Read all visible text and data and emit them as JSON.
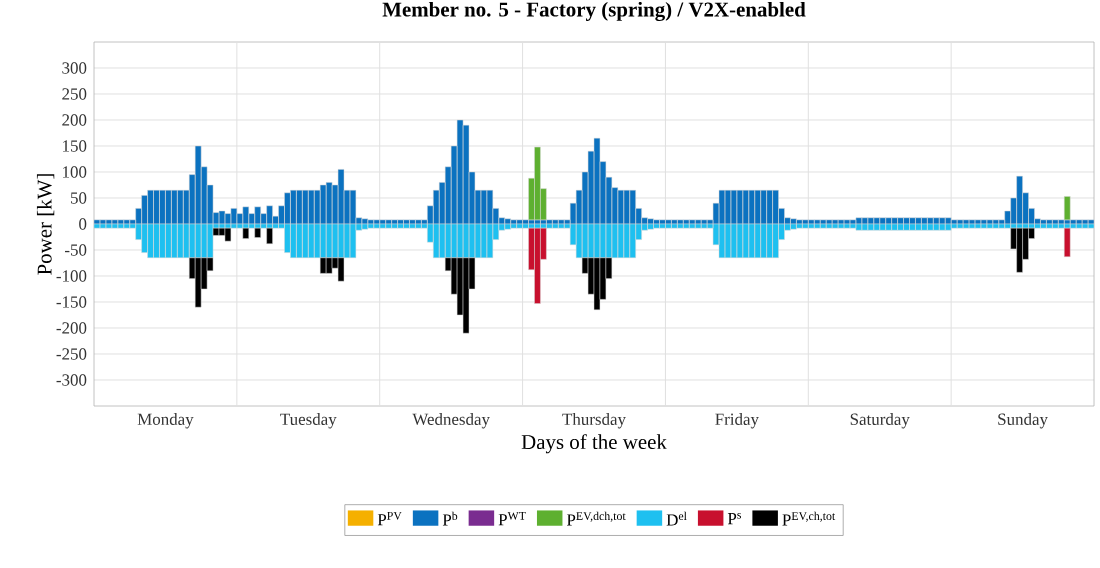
{
  "chart_data": {
    "type": "bar",
    "stacked": true,
    "title": "Member no. 5 - Factory (spring) / V2X-enabled",
    "xlabel": "Days of the week",
    "ylabel": "Power [kW]",
    "grid": true,
    "legend": "bottom",
    "ylim": [
      -350,
      350
    ],
    "yticks": [
      -300,
      -250,
      -200,
      -150,
      -100,
      -50,
      0,
      50,
      100,
      150,
      200,
      250,
      300
    ],
    "categories": [
      null,
      null,
      null,
      null,
      null,
      null,
      null,
      null,
      null,
      null,
      null,
      null,
      "Monday",
      null,
      null,
      null,
      null,
      null,
      null,
      null,
      null,
      null,
      null,
      null,
      null,
      null,
      null,
      null,
      null,
      null,
      null,
      null,
      null,
      null,
      null,
      null,
      "Tuesday",
      null,
      null,
      null,
      null,
      null,
      null,
      null,
      null,
      null,
      null,
      null,
      null,
      null,
      null,
      null,
      null,
      null,
      null,
      null,
      null,
      null,
      null,
      null,
      "Wednesday",
      null,
      null,
      null,
      null,
      null,
      null,
      null,
      null,
      null,
      null,
      null,
      null,
      null,
      null,
      null,
      null,
      null,
      null,
      null,
      null,
      null,
      null,
      null,
      "Thursday",
      null,
      null,
      null,
      null,
      null,
      null,
      null,
      null,
      null,
      null,
      null,
      null,
      null,
      null,
      null,
      null,
      null,
      null,
      null,
      null,
      null,
      null,
      null,
      "Friday",
      null,
      null,
      null,
      null,
      null,
      null,
      null,
      null,
      null,
      null,
      null,
      null,
      null,
      null,
      null,
      null,
      null,
      null,
      null,
      null,
      null,
      null,
      null,
      "Saturday",
      null,
      null,
      null,
      null,
      null,
      null,
      null,
      null,
      null,
      null,
      null,
      null,
      null,
      null,
      null,
      null,
      null,
      null,
      null,
      null,
      null,
      null,
      null,
      "Sunday",
      null,
      null,
      null,
      null,
      null,
      null,
      null,
      null,
      null,
      null,
      null
    ],
    "series": [
      {
        "name": "P$^{PV}$",
        "color": "#f5b000",
        "values": [
          null,
          null,
          null,
          null,
          null,
          null,
          null,
          null,
          null,
          null,
          null,
          null,
          null,
          null,
          null,
          null,
          null,
          null,
          null,
          null,
          null,
          null,
          null,
          null,
          null,
          null,
          null,
          null,
          null,
          null,
          null,
          null,
          null,
          null,
          null,
          null,
          null,
          null,
          null,
          null,
          null,
          null,
          null,
          null,
          null,
          null,
          null,
          null,
          null,
          null,
          null,
          null,
          null,
          null,
          null,
          null,
          null,
          null,
          null,
          null,
          null,
          null,
          null,
          null,
          null,
          null,
          null,
          null,
          null,
          null,
          null,
          null,
          null,
          null,
          null,
          null,
          null,
          null,
          null,
          null,
          null,
          null,
          null,
          null,
          null,
          null,
          null,
          null,
          null,
          null,
          null,
          null,
          null,
          null,
          null,
          null,
          null,
          null,
          null,
          null,
          null,
          null,
          null,
          null,
          null,
          null,
          null,
          null,
          null,
          null,
          null,
          null,
          null,
          null,
          null,
          null,
          null,
          null,
          null,
          null,
          null,
          null,
          null,
          null,
          null,
          null,
          null,
          null,
          null,
          null,
          null,
          null,
          null,
          null,
          null,
          null,
          null,
          null,
          null,
          null,
          null,
          null,
          null,
          null,
          null,
          null,
          null,
          null,
          null,
          null,
          null,
          null,
          null,
          null,
          null,
          null,
          null,
          null,
          null,
          null,
          null,
          null,
          null,
          null,
          null,
          null,
          null,
          null
        ]
      },
      {
        "name": "P$^{b}$",
        "color": "#0b72c0",
        "values": [
          8,
          8,
          8,
          8,
          8,
          8,
          8,
          30,
          55,
          65,
          65,
          65,
          65,
          65,
          65,
          65,
          95,
          150,
          110,
          75,
          22,
          25,
          20,
          30,
          20,
          33,
          20,
          33,
          20,
          35,
          15,
          35,
          60,
          65,
          65,
          65,
          65,
          65,
          75,
          80,
          75,
          105,
          65,
          65,
          12,
          10,
          8,
          8,
          8,
          8,
          8,
          8,
          8,
          8,
          8,
          8,
          35,
          65,
          80,
          110,
          150,
          200,
          190,
          100,
          65,
          65,
          65,
          30,
          12,
          10,
          8,
          8,
          8,
          8,
          8,
          8,
          8,
          8,
          8,
          8,
          40,
          65,
          100,
          140,
          165,
          120,
          90,
          70,
          65,
          65,
          65,
          30,
          12,
          10,
          8,
          8,
          8,
          8,
          8,
          8,
          8,
          8,
          8,
          8,
          40,
          65,
          65,
          65,
          65,
          65,
          65,
          65,
          65,
          65,
          65,
          30,
          12,
          10,
          8,
          8,
          8,
          8,
          8,
          8,
          8,
          8,
          8,
          8,
          12,
          12,
          12,
          12,
          12,
          12,
          12,
          12,
          12,
          12,
          12,
          12,
          12,
          12,
          12,
          12,
          8,
          8,
          8,
          8,
          8,
          8,
          8,
          8,
          8,
          25,
          50,
          92,
          60,
          30,
          10,
          8,
          8,
          8,
          8,
          8,
          8,
          8,
          8,
          8
        ]
      },
      {
        "name": "P$^{WT}$",
        "color": "#7a2c90",
        "values": [
          null,
          null,
          null,
          null,
          null,
          null,
          null,
          null,
          null,
          null,
          null,
          null,
          null,
          null,
          null,
          null,
          null,
          null,
          null,
          null,
          null,
          null,
          null,
          null,
          null,
          null,
          null,
          null,
          null,
          null,
          null,
          null,
          null,
          null,
          null,
          null,
          null,
          null,
          null,
          null,
          null,
          null,
          null,
          null,
          null,
          null,
          null,
          null,
          null,
          null,
          null,
          null,
          null,
          null,
          null,
          null,
          null,
          null,
          null,
          null,
          null,
          null,
          null,
          null,
          null,
          null,
          null,
          null,
          null,
          null,
          null,
          null,
          null,
          null,
          null,
          null,
          null,
          null,
          null,
          null,
          null,
          null,
          null,
          null,
          null,
          null,
          null,
          null,
          null,
          null,
          null,
          null,
          null,
          null,
          null,
          null,
          null,
          null,
          null,
          null,
          null,
          null,
          null,
          null,
          null,
          null,
          null,
          null,
          null,
          null,
          null,
          null,
          null,
          null,
          null,
          null,
          null,
          null,
          null,
          null,
          null,
          null,
          null,
          null,
          null,
          null,
          null,
          null,
          null,
          null,
          null,
          null,
          null,
          null,
          null,
          null,
          null,
          null,
          null,
          null,
          null,
          null,
          null,
          null,
          null,
          null,
          null,
          null,
          null,
          null,
          null,
          null,
          null,
          null,
          null,
          null,
          null,
          null,
          null,
          null,
          null,
          null,
          null,
          null,
          null,
          null,
          null,
          null
        ]
      },
      {
        "name": "P$^{EV,dch,tot}$",
        "color": "#5eb030",
        "values": [
          null,
          null,
          null,
          null,
          null,
          null,
          null,
          null,
          null,
          null,
          null,
          null,
          null,
          null,
          null,
          null,
          null,
          null,
          null,
          null,
          null,
          null,
          null,
          null,
          null,
          null,
          null,
          null,
          null,
          null,
          null,
          null,
          null,
          null,
          null,
          null,
          null,
          null,
          null,
          null,
          null,
          null,
          null,
          null,
          null,
          null,
          null,
          null,
          null,
          null,
          null,
          null,
          null,
          null,
          null,
          null,
          null,
          null,
          null,
          null,
          null,
          null,
          null,
          null,
          null,
          null,
          null,
          null,
          null,
          null,
          null,
          null,
          null,
          80,
          140,
          60,
          null,
          null,
          null,
          null,
          null,
          null,
          null,
          null,
          null,
          null,
          null,
          null,
          null,
          null,
          null,
          null,
          null,
          null,
          null,
          null,
          null,
          null,
          null,
          null,
          null,
          null,
          null,
          null,
          null,
          null,
          null,
          null,
          null,
          null,
          null,
          null,
          null,
          null,
          null,
          null,
          null,
          null,
          null,
          null,
          null,
          null,
          null,
          null,
          null,
          null,
          null,
          null,
          null,
          null,
          null,
          null,
          null,
          null,
          null,
          null,
          null,
          null,
          null,
          null,
          null,
          null,
          null,
          null,
          null,
          null,
          null,
          null,
          null,
          null,
          null,
          null,
          null,
          null,
          null,
          null,
          null,
          null,
          null,
          null,
          null,
          null,
          null,
          45,
          null,
          null,
          null,
          null
        ]
      },
      {
        "name": "D$^{el}$",
        "color": "#1ec0f0",
        "values": [
          -8,
          -8,
          -8,
          -8,
          -8,
          -8,
          -8,
          -30,
          -55,
          -65,
          -65,
          -65,
          -65,
          -65,
          -65,
          -65,
          -65,
          -65,
          -65,
          -65,
          -8,
          -8,
          -8,
          -8,
          -8,
          -8,
          -8,
          -8,
          -8,
          -8,
          -8,
          -8,
          -55,
          -65,
          -65,
          -65,
          -65,
          -65,
          -65,
          -65,
          -65,
          -65,
          -65,
          -65,
          -12,
          -10,
          -8,
          -8,
          -8,
          -8,
          -8,
          -8,
          -8,
          -8,
          -8,
          -8,
          -35,
          -65,
          -65,
          -65,
          -65,
          -65,
          -65,
          -65,
          -65,
          -65,
          -65,
          -30,
          -12,
          -10,
          -8,
          -8,
          -8,
          -8,
          -8,
          -8,
          -8,
          -8,
          -8,
          -8,
          -40,
          -65,
          -65,
          -65,
          -65,
          -65,
          -65,
          -65,
          -65,
          -65,
          -65,
          -30,
          -12,
          -10,
          -8,
          -8,
          -8,
          -8,
          -8,
          -8,
          -8,
          -8,
          -8,
          -8,
          -40,
          -65,
          -65,
          -65,
          -65,
          -65,
          -65,
          -65,
          -65,
          -65,
          -65,
          -30,
          -12,
          -10,
          -8,
          -8,
          -8,
          -8,
          -8,
          -8,
          -8,
          -8,
          -8,
          -8,
          -12,
          -12,
          -12,
          -12,
          -12,
          -12,
          -12,
          -12,
          -12,
          -12,
          -12,
          -12,
          -12,
          -12,
          -12,
          -12,
          -8,
          -8,
          -8,
          -8,
          -8,
          -8,
          -8,
          -8,
          -8,
          -8,
          -8,
          -8,
          -8,
          -8,
          -8,
          -8,
          -8,
          -8,
          -8,
          -8,
          -8,
          -8,
          -8,
          -8
        ]
      },
      {
        "name": "P$^{s}$",
        "color": "#c8102e",
        "values": [
          null,
          null,
          null,
          null,
          null,
          null,
          null,
          null,
          null,
          null,
          null,
          null,
          null,
          null,
          null,
          null,
          null,
          null,
          null,
          null,
          null,
          null,
          null,
          null,
          null,
          null,
          null,
          null,
          null,
          null,
          null,
          null,
          null,
          null,
          null,
          null,
          null,
          null,
          null,
          null,
          null,
          null,
          null,
          null,
          null,
          null,
          null,
          null,
          null,
          null,
          null,
          null,
          null,
          null,
          null,
          null,
          null,
          null,
          null,
          null,
          null,
          null,
          null,
          null,
          null,
          null,
          null,
          null,
          null,
          null,
          null,
          null,
          null,
          -80,
          -145,
          -60,
          null,
          null,
          null,
          null,
          null,
          null,
          null,
          null,
          null,
          null,
          null,
          null,
          null,
          null,
          null,
          null,
          null,
          null,
          null,
          null,
          null,
          null,
          null,
          null,
          null,
          null,
          null,
          null,
          null,
          null,
          null,
          null,
          null,
          null,
          null,
          null,
          null,
          null,
          null,
          null,
          null,
          null,
          null,
          null,
          null,
          null,
          null,
          null,
          null,
          null,
          null,
          null,
          null,
          null,
          null,
          null,
          null,
          null,
          null,
          null,
          null,
          null,
          null,
          null,
          null,
          null,
          null,
          null,
          null,
          null,
          null,
          null,
          null,
          null,
          null,
          null,
          null,
          null,
          null,
          null,
          null,
          null,
          null,
          null,
          null,
          null,
          null,
          -55,
          null,
          null,
          null,
          null
        ]
      },
      {
        "name": "P$^{EV,ch,tot}$",
        "color": "#000000",
        "values": [
          null,
          null,
          null,
          null,
          null,
          null,
          null,
          null,
          null,
          null,
          null,
          null,
          null,
          null,
          null,
          null,
          -40,
          -95,
          -60,
          -25,
          -14,
          -14,
          -25,
          null,
          null,
          -20,
          null,
          -18,
          null,
          -30,
          null,
          null,
          null,
          null,
          null,
          null,
          null,
          null,
          -30,
          -30,
          -20,
          -45,
          null,
          null,
          null,
          null,
          null,
          null,
          null,
          null,
          null,
          null,
          null,
          null,
          null,
          null,
          null,
          null,
          null,
          -25,
          -70,
          -110,
          -145,
          -60,
          null,
          null,
          null,
          null,
          null,
          null,
          null,
          null,
          null,
          null,
          null,
          null,
          null,
          null,
          null,
          null,
          null,
          null,
          -30,
          -70,
          -100,
          -80,
          -40,
          null,
          null,
          null,
          null,
          null,
          null,
          null,
          null,
          null,
          null,
          null,
          null,
          null,
          null,
          null,
          null,
          null,
          null,
          null,
          null,
          null,
          null,
          null,
          null,
          null,
          null,
          null,
          null,
          null,
          null,
          null,
          null,
          null,
          null,
          null,
          null,
          null,
          null,
          null,
          null,
          null,
          null,
          null,
          null,
          null,
          null,
          null,
          null,
          null,
          null,
          null,
          null,
          null,
          null,
          null,
          null,
          null,
          null,
          null,
          null,
          null,
          null,
          null,
          null,
          null,
          null,
          null,
          -40,
          -85,
          -60,
          -20,
          null,
          null,
          null,
          null,
          null,
          null,
          null,
          null,
          null,
          null
        ]
      }
    ]
  }
}
